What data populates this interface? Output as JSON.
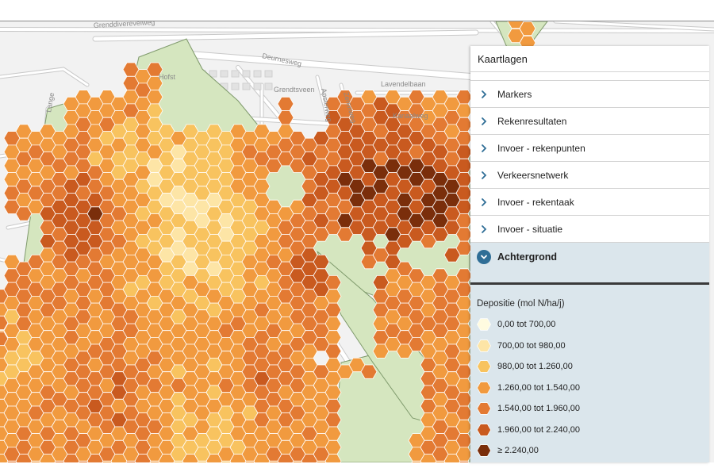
{
  "map": {
    "road_labels": [
      "Grenddiverevelweg",
      "Deurnesweg",
      "Grendtsveen",
      "Apsterweg",
      "Zerenweg",
      "Lavendelbaan",
      "Kanaalweg",
      "Hofst",
      "Lange"
    ],
    "colors": {
      "background": "#f2f2f2",
      "nature": "#d5e6bf",
      "nature_border": "#7f9a6c",
      "road": "#ffffff",
      "road_casing": "#c9c9c9"
    }
  },
  "panel": {
    "title": "Kaartlagen",
    "layers": [
      {
        "label": "Markers",
        "expanded": false
      },
      {
        "label": "Rekenresultaten",
        "expanded": false
      },
      {
        "label": "Invoer - rekenpunten",
        "expanded": false
      },
      {
        "label": "Verkeersnetwerk",
        "expanded": false
      },
      {
        "label": "Invoer - rekentaak",
        "expanded": false
      },
      {
        "label": "Invoer - situatie",
        "expanded": false
      },
      {
        "label": "Achtergrond",
        "expanded": true
      }
    ],
    "legend": {
      "title": "Depositie (mol N/ha/j)",
      "items": [
        {
          "label": "0,00 tot 700,00",
          "color": "#fffbe0"
        },
        {
          "label": "700,00 tot 980,00",
          "color": "#fde5a6"
        },
        {
          "label": "980,00 tot 1.260,00",
          "color": "#f8c35f"
        },
        {
          "label": "1.260,00 tot 1.540,00",
          "color": "#f19a3f"
        },
        {
          "label": "1.540,00 tot 1.960,00",
          "color": "#e37a33"
        },
        {
          "label": "1.960,00 tot 2.240,00",
          "color": "#c95a1f"
        },
        {
          "label": "≥ 2.240,00",
          "color": "#7a2e0b"
        }
      ]
    }
  }
}
